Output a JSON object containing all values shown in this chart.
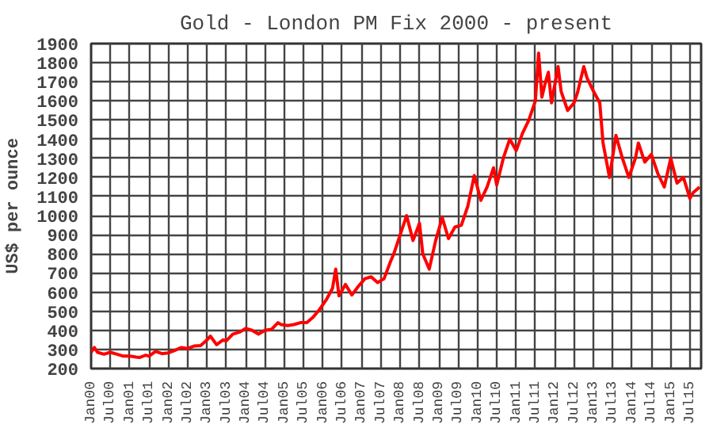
{
  "chart_data": {
    "type": "line",
    "title": "Gold - London PM Fix 2000 - present",
    "ylabel": "US$ per ounce",
    "x": [
      "2000-01",
      "2000-02",
      "2000-03",
      "2000-05",
      "2000-07",
      "2000-09",
      "2000-11",
      "2001-01",
      "2001-03",
      "2001-04",
      "2001-06",
      "2001-07",
      "2001-09",
      "2001-11",
      "2002-01",
      "2002-03",
      "2002-05",
      "2002-07",
      "2002-09",
      "2002-11",
      "2003-01",
      "2003-02",
      "2003-04",
      "2003-06",
      "2003-07",
      "2003-09",
      "2003-11",
      "2004-01",
      "2004-03",
      "2004-05",
      "2004-07",
      "2004-09",
      "2004-11",
      "2004-12",
      "2005-02",
      "2005-04",
      "2005-06",
      "2005-08",
      "2005-10",
      "2005-12",
      "2006-02",
      "2006-04",
      "2006-05",
      "2006-06",
      "2006-08",
      "2006-10",
      "2006-12",
      "2007-02",
      "2007-04",
      "2007-06",
      "2007-08",
      "2007-10",
      "2007-11",
      "2008-01",
      "2008-03",
      "2008-05",
      "2008-07",
      "2008-08",
      "2008-10",
      "2008-12",
      "2009-02",
      "2009-04",
      "2009-06",
      "2009-08",
      "2009-10",
      "2009-12",
      "2010-02",
      "2010-04",
      "2010-06",
      "2010-07",
      "2010-09",
      "2010-11",
      "2011-01",
      "2011-03",
      "2011-05",
      "2011-07",
      "2011-08",
      "2011-09",
      "2011-10",
      "2011-11",
      "2011-12",
      "2012-02",
      "2012-03",
      "2012-05",
      "2012-07",
      "2012-08",
      "2012-10",
      "2012-11",
      "2013-01",
      "2013-03",
      "2013-04",
      "2013-06",
      "2013-08",
      "2013-10",
      "2013-12",
      "2014-02",
      "2014-03",
      "2014-05",
      "2014-07",
      "2014-09",
      "2014-11",
      "2015-01",
      "2015-03",
      "2015-05",
      "2015-07",
      "2015-08",
      "2015-10"
    ],
    "values": [
      285,
      310,
      285,
      275,
      285,
      275,
      265,
      265,
      260,
      258,
      270,
      265,
      290,
      278,
      282,
      295,
      310,
      305,
      318,
      320,
      350,
      370,
      325,
      350,
      345,
      380,
      390,
      410,
      400,
      380,
      400,
      405,
      440,
      430,
      425,
      430,
      440,
      440,
      470,
      510,
      560,
      620,
      720,
      580,
      640,
      585,
      630,
      670,
      680,
      650,
      670,
      760,
      800,
      900,
      1000,
      870,
      960,
      800,
      720,
      870,
      990,
      880,
      940,
      950,
      1050,
      1210,
      1080,
      1150,
      1250,
      1160,
      1300,
      1400,
      1340,
      1430,
      1500,
      1600,
      1850,
      1620,
      1690,
      1750,
      1590,
      1780,
      1650,
      1550,
      1590,
      1640,
      1780,
      1720,
      1650,
      1590,
      1380,
      1200,
      1420,
      1300,
      1200,
      1300,
      1380,
      1280,
      1320,
      1220,
      1150,
      1300,
      1170,
      1200,
      1090,
      1120,
      1150
    ],
    "color": "#ff0000",
    "xlim": [
      "2000-01",
      "2015-10-15"
    ],
    "xticks": [
      {
        "value": "2000-01",
        "label": "Jan00"
      },
      {
        "value": "2000-07",
        "label": "Jul00"
      },
      {
        "value": "2001-01",
        "label": "Jan01"
      },
      {
        "value": "2001-07",
        "label": "Jul01"
      },
      {
        "value": "2002-01",
        "label": "Jan02"
      },
      {
        "value": "2002-07",
        "label": "Jul02"
      },
      {
        "value": "2003-01",
        "label": "Jan03"
      },
      {
        "value": "2003-07",
        "label": "Jul03"
      },
      {
        "value": "2004-01",
        "label": "Jan04"
      },
      {
        "value": "2004-07",
        "label": "Jul04"
      },
      {
        "value": "2005-01",
        "label": "Jan05"
      },
      {
        "value": "2005-07",
        "label": "Jul05"
      },
      {
        "value": "2006-01",
        "label": "Jan06"
      },
      {
        "value": "2006-07",
        "label": "Jul06"
      },
      {
        "value": "2007-01",
        "label": "Jan07"
      },
      {
        "value": "2007-07",
        "label": "Jul07"
      },
      {
        "value": "2008-01",
        "label": "Jan08"
      },
      {
        "value": "2008-07",
        "label": "Jul08"
      },
      {
        "value": "2009-01",
        "label": "Jan09"
      },
      {
        "value": "2009-07",
        "label": "Jul09"
      },
      {
        "value": "2010-01",
        "label": "Jan10"
      },
      {
        "value": "2010-07",
        "label": "Jul10"
      },
      {
        "value": "2011-01",
        "label": "Jan11"
      },
      {
        "value": "2011-07",
        "label": "Jul11"
      },
      {
        "value": "2012-01",
        "label": "Jan12"
      },
      {
        "value": "2012-07",
        "label": "Jul12"
      },
      {
        "value": "2013-01",
        "label": "Jan13"
      },
      {
        "value": "2013-07",
        "label": "Jul13"
      },
      {
        "value": "2014-01",
        "label": "Jan14"
      },
      {
        "value": "2014-07",
        "label": "Jul14"
      },
      {
        "value": "2015-01",
        "label": "Jan15"
      },
      {
        "value": "2015-07",
        "label": "Jul15"
      }
    ],
    "ylim": [
      200,
      1900
    ],
    "yticks": [
      200,
      300,
      400,
      500,
      600,
      700,
      800,
      900,
      1000,
      1100,
      1200,
      1300,
      1400,
      1500,
      1600,
      1700,
      1800,
      1900
    ],
    "grid": true,
    "marker": "none",
    "line_style": "solid"
  }
}
